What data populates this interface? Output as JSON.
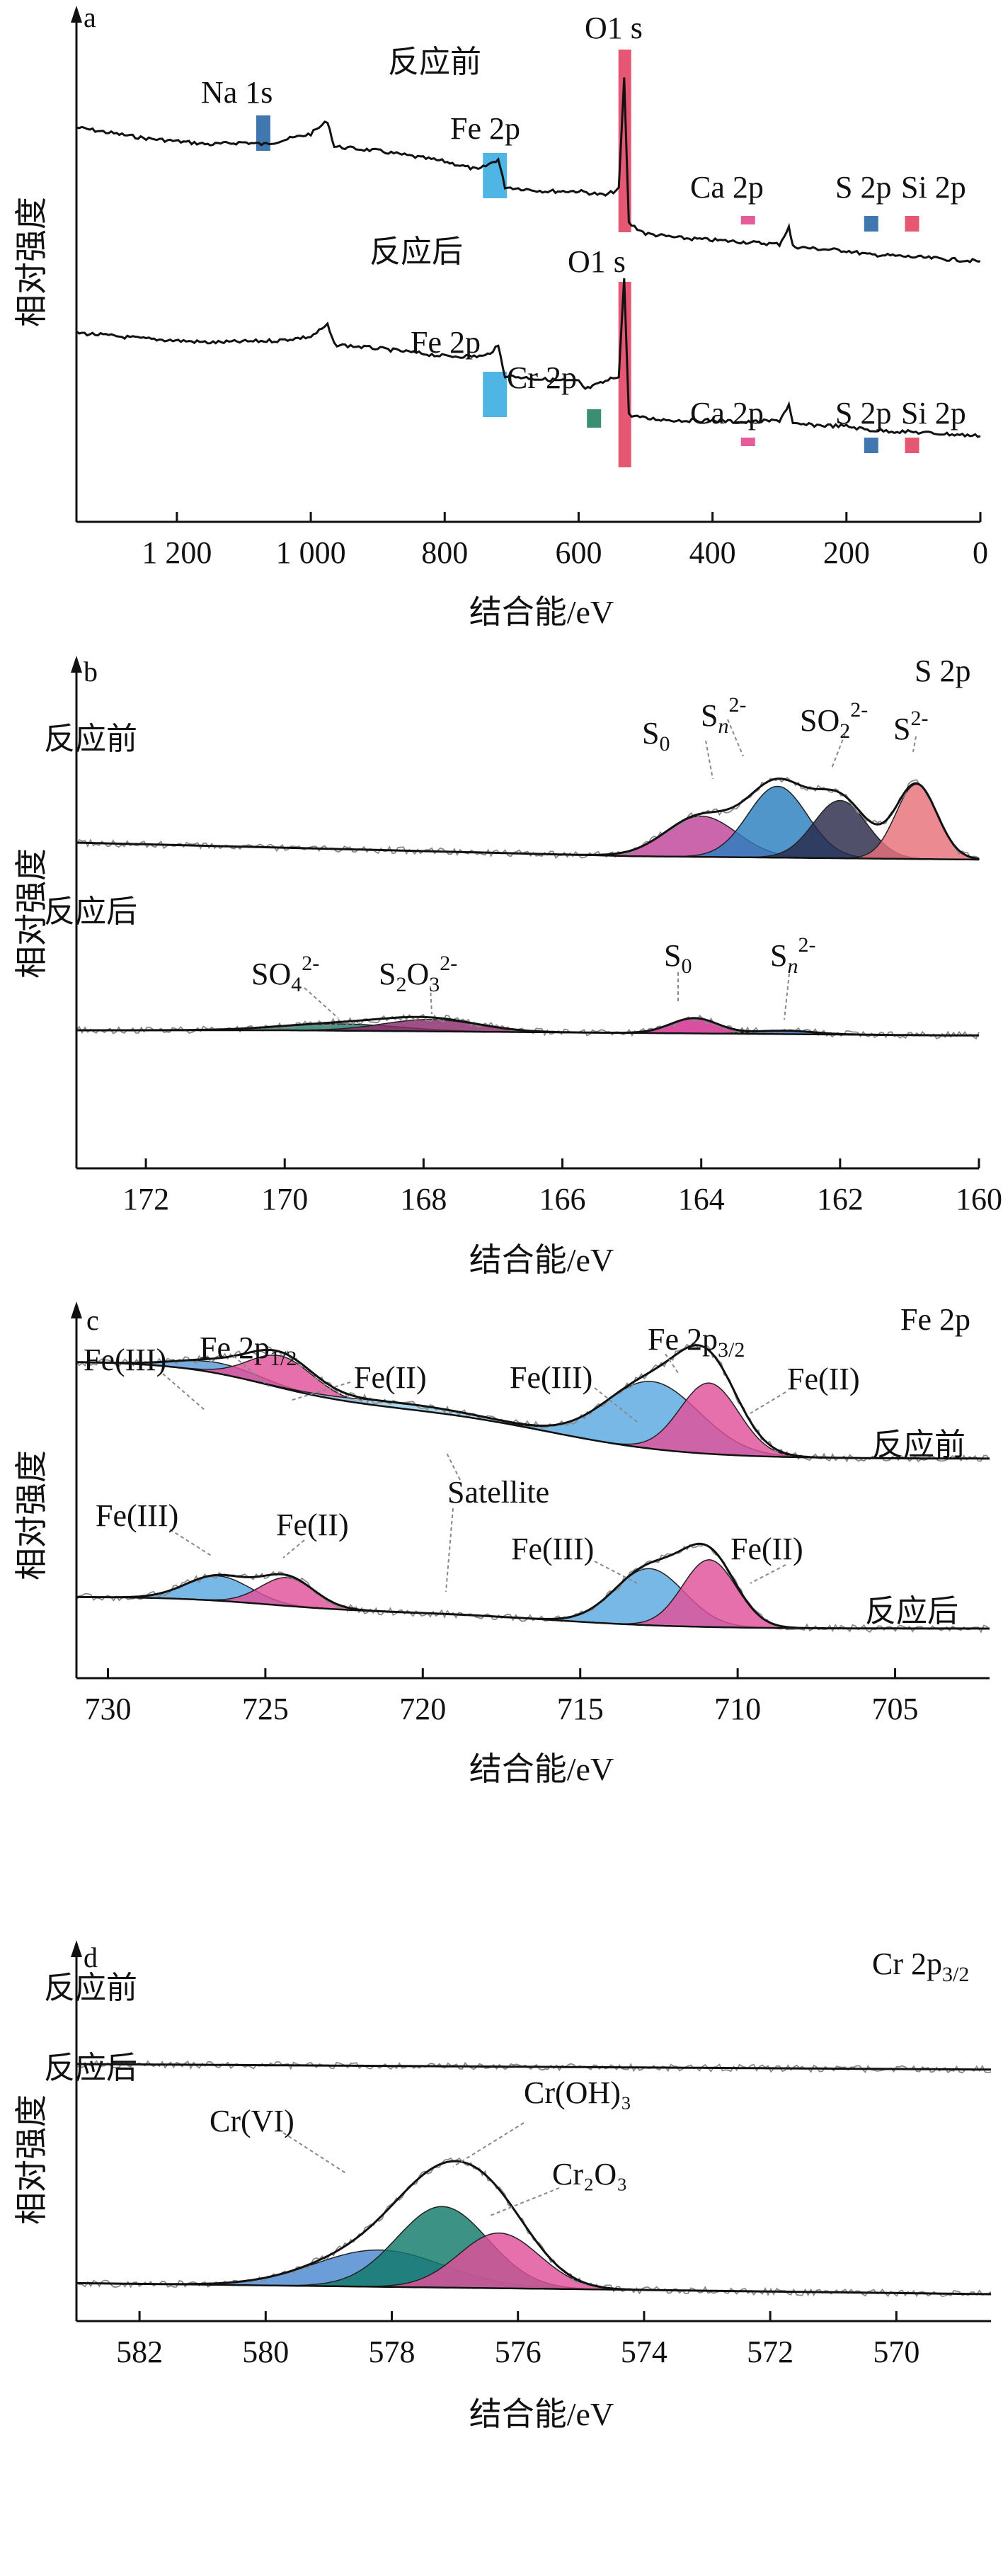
{
  "chart_data": [
    {
      "panel": "a",
      "type": "line",
      "xlabel": "结合能/eV",
      "ylabel": "相对强度",
      "xlim": [
        1350,
        0
      ],
      "xticks": [
        1200,
        1000,
        800,
        600,
        400,
        200,
        0
      ],
      "xtick_labels": [
        "1 200",
        "1 000",
        "800",
        "600",
        "400",
        "200",
        "0"
      ],
      "series": [
        {
          "name": "反应前",
          "x": [
            1350,
            1250,
            1150,
            1100,
            1070,
            1000,
            975,
            965,
            900,
            800,
            750,
            720,
            710,
            650,
            600,
            560,
            540,
            532,
            525,
            500,
            450,
            400,
            350,
            300,
            286,
            280,
            250,
            200,
            165,
            150,
            100,
            50,
            0
          ],
          "y": [
            77,
            72,
            69,
            70,
            69,
            74,
            80,
            68,
            66,
            61,
            57,
            62,
            49,
            47,
            47,
            45,
            48,
            100,
            32,
            27,
            25,
            24,
            23,
            22,
            30,
            21,
            20,
            19,
            17,
            17,
            16,
            15,
            14
          ]
        },
        {
          "name": "反应后",
          "x": [
            1350,
            1250,
            1150,
            1050,
            1000,
            975,
            965,
            900,
            850,
            800,
            740,
            720,
            710,
            650,
            600,
            590,
            560,
            540,
            532,
            525,
            500,
            450,
            400,
            350,
            300,
            286,
            280,
            200,
            165,
            100,
            50,
            0
          ],
          "y": [
            -28,
            -31,
            -33,
            -32,
            -30,
            -24,
            -34,
            -36,
            -38,
            -40,
            -40,
            -35,
            -50,
            -52,
            -53,
            -57,
            -53,
            -50,
            0,
            -70,
            -72,
            -73,
            -73,
            -74,
            -73,
            -65,
            -75,
            -76,
            -78,
            -79,
            -80,
            -81
          ]
        }
      ],
      "markers": [
        {
          "label": "Na 1s",
          "x": 1071,
          "series": 0,
          "color": "#1f5fa0"
        },
        {
          "label": "Fe 2p",
          "x": 725,
          "series": 0,
          "color": "#2fa8e0"
        },
        {
          "label": "O1 s",
          "x": 531,
          "series": 0,
          "color": "#e03a5a"
        },
        {
          "label": "Ca 2p",
          "x": 347,
          "series": 0,
          "color": "#e0408a"
        },
        {
          "label": "S 2p",
          "x": 163,
          "series": 0,
          "color": "#1f5fa0"
        },
        {
          "label": "Si 2p",
          "x": 102,
          "series": 0,
          "color": "#e03a5a"
        },
        {
          "label": "Fe 2p",
          "x": 725,
          "series": 1,
          "color": "#2fa8e0"
        },
        {
          "label": "Cr 2p",
          "x": 577,
          "series": 1,
          "color": "#1a7a5a"
        },
        {
          "label": "O1 s",
          "x": 531,
          "series": 1,
          "color": "#e03a5a"
        },
        {
          "label": "Ca 2p",
          "x": 347,
          "series": 1,
          "color": "#e0408a"
        },
        {
          "label": "S 2p",
          "x": 163,
          "series": 1,
          "color": "#1f5fa0"
        },
        {
          "label": "Si 2p",
          "x": 102,
          "series": 1,
          "color": "#e03a5a"
        }
      ]
    },
    {
      "panel": "b",
      "type": "area",
      "title": "S 2p",
      "xlabel": "结合能/eV",
      "ylabel": "相对强度",
      "xlim": [
        173,
        160
      ],
      "xticks": [
        172,
        170,
        168,
        166,
        164,
        162,
        160
      ],
      "series": [
        {
          "name": "反应前",
          "baseline": [
            [
              173,
              40
            ],
            [
              165,
              32
            ],
            [
              160,
              30
            ]
          ],
          "envelope": [
            [
              173,
              40
            ],
            [
              168,
              36
            ],
            [
              166,
              38
            ],
            [
              165,
              44
            ],
            [
              164.5,
              52
            ],
            [
              164,
              62
            ],
            [
              163.4,
              72
            ],
            [
              163,
              80
            ],
            [
              162.5,
              80
            ],
            [
              162,
              76
            ],
            [
              161.5,
              70
            ],
            [
              161,
              74
            ],
            [
              160.9,
              76
            ],
            [
              160.5,
              52
            ],
            [
              160.2,
              35
            ]
          ]
        },
        {
          "name": "反应后",
          "baseline": [
            [
              173,
              0
            ],
            [
              170,
              0
            ],
            [
              160.5,
              -3
            ]
          ],
          "envelope": [
            [
              173,
              0
            ],
            [
              170,
              3
            ],
            [
              168,
              7
            ],
            [
              167,
              5
            ],
            [
              165,
              1
            ],
            [
              164.1,
              9
            ],
            [
              163.5,
              4
            ],
            [
              163,
              2
            ],
            [
              161,
              -2
            ],
            [
              160.5,
              -3
            ]
          ]
        }
      ],
      "components": [
        {
          "label": "S0",
          "center": 164.0,
          "fwhm": 1.2,
          "height": 24,
          "series": 0,
          "color": "#c0449a"
        },
        {
          "label": "Sn2-",
          "center": 162.9,
          "fwhm": 1.0,
          "height": 42,
          "series": 0,
          "color": "#2a7fc0"
        },
        {
          "label": "SO22-",
          "center": 162.0,
          "fwhm": 0.9,
          "height": 34,
          "series": 0,
          "color": "#2a2a4a"
        },
        {
          "label": "S2-",
          "center": 160.9,
          "fwhm": 0.7,
          "height": 44,
          "series": 0,
          "color": "#e8707a"
        },
        {
          "label": "SO42-",
          "center": 169.2,
          "fwhm": 2.0,
          "height": 4,
          "series": 1,
          "color": "#2a7a6a"
        },
        {
          "label": "S2O32-",
          "center": 167.9,
          "fwhm": 1.6,
          "height": 7,
          "series": 1,
          "color": "#8a2a6a"
        },
        {
          "label": "S0",
          "center": 164.1,
          "fwhm": 0.8,
          "height": 9,
          "series": 1,
          "color": "#d02a8a"
        },
        {
          "label": "Sn2-",
          "center": 162.8,
          "fwhm": 1.0,
          "height": 2,
          "series": 1,
          "color": "#3a6ab0"
        }
      ]
    },
    {
      "panel": "c",
      "type": "area",
      "title": "Fe 2p",
      "xlabel": "结合能/eV",
      "ylabel": "相对强度",
      "xlim": [
        731,
        702
      ],
      "xticks": [
        730,
        725,
        720,
        715,
        710,
        705
      ],
      "series": [
        {
          "name": "反应前",
          "baseline_start": 55,
          "baseline_end": 0
        },
        {
          "name": "反应后",
          "baseline_start": 18,
          "baseline_end": 0
        }
      ],
      "components": [
        {
          "label": "Fe(III)",
          "center": 726.5,
          "fwhm": 3.0,
          "height": 6,
          "series": 0,
          "color": "#5a9ad8"
        },
        {
          "label": "Fe(II)",
          "center": 724.5,
          "fwhm": 2.4,
          "height": 18,
          "series": 0,
          "color": "#e0509a"
        },
        {
          "label": "Satellite",
          "center": 720.5,
          "fwhm": 5.0,
          "height": 3,
          "series": 0,
          "color": "#9ad0e8"
        },
        {
          "label": "Fe(III)",
          "center": 712.7,
          "fwhm": 3.5,
          "height": 38,
          "series": 0,
          "color": "#5aa8e0"
        },
        {
          "label": "Fe(II)",
          "center": 710.9,
          "fwhm": 2.2,
          "height": 40,
          "series": 0,
          "color": "#e0509a"
        },
        {
          "label": "Fe(III)",
          "center": 726.5,
          "fwhm": 2.4,
          "height": 14,
          "series": 1,
          "color": "#5aa8e0"
        },
        {
          "label": "Fe(II)",
          "center": 724.3,
          "fwhm": 2.0,
          "height": 16,
          "series": 1,
          "color": "#e0509a"
        },
        {
          "label": "Fe(III)",
          "center": 712.8,
          "fwhm": 2.6,
          "height": 32,
          "series": 1,
          "color": "#5aa8e0"
        },
        {
          "label": "Fe(II)",
          "center": 710.9,
          "fwhm": 2.0,
          "height": 38,
          "series": 1,
          "color": "#e0509a"
        }
      ]
    },
    {
      "panel": "d",
      "type": "area",
      "title": "Cr 2p3/2",
      "xlabel": "结合能/eV",
      "ylabel": "相对强度",
      "xlim": [
        583,
        568.5
      ],
      "xticks": [
        582,
        580,
        578,
        576,
        574,
        572,
        570
      ],
      "series": [
        {
          "name": "反应前",
          "baseline_start": 125,
          "baseline_end": 122
        },
        {
          "name": "反应后",
          "baseline_start": 6,
          "baseline_end": 0
        }
      ],
      "components": [
        {
          "label": "Cr(VI)",
          "center": 578.2,
          "fwhm": 2.4,
          "height": 20,
          "series": 1,
          "color": "#4a88d0"
        },
        {
          "label": "Cr(OH)3",
          "center": 577.2,
          "fwhm": 1.7,
          "height": 44,
          "series": 1,
          "color": "#117a6a"
        },
        {
          "label": "Cr2O3",
          "center": 576.3,
          "fwhm": 1.5,
          "height": 30,
          "series": 1,
          "color": "#e0509a"
        }
      ]
    }
  ],
  "labels": {
    "a": {
      "panel": "a",
      "before": "反应前",
      "after": "反应后",
      "na1s": "Na 1s",
      "fe2p": "Fe 2p",
      "o1s": "O1 s",
      "ca2p": "Ca 2p",
      "s2p": "S 2p",
      "si2p": "Si 2p",
      "cr2p": "Cr 2p"
    },
    "b": {
      "panel": "b",
      "title": "S 2p",
      "before": "反应前",
      "after": "反应后"
    },
    "c": {
      "panel": "c",
      "title": "Fe 2p",
      "before": "反应前",
      "after": "反应后",
      "fe3": "Fe(III)",
      "fe2": "Fe(II)",
      "satellite": "Satellite"
    },
    "d": {
      "panel": "d",
      "title_base": "Cr 2p",
      "title_sub": "3/2",
      "before": "反应前",
      "after": "反应后",
      "cr6": "Cr(VI)",
      "croh": "Cr(OH)₃",
      "cr2o3": "Cr₂O₃"
    },
    "xlabel": "结合能/eV",
    "ylabel": "相对强度"
  }
}
